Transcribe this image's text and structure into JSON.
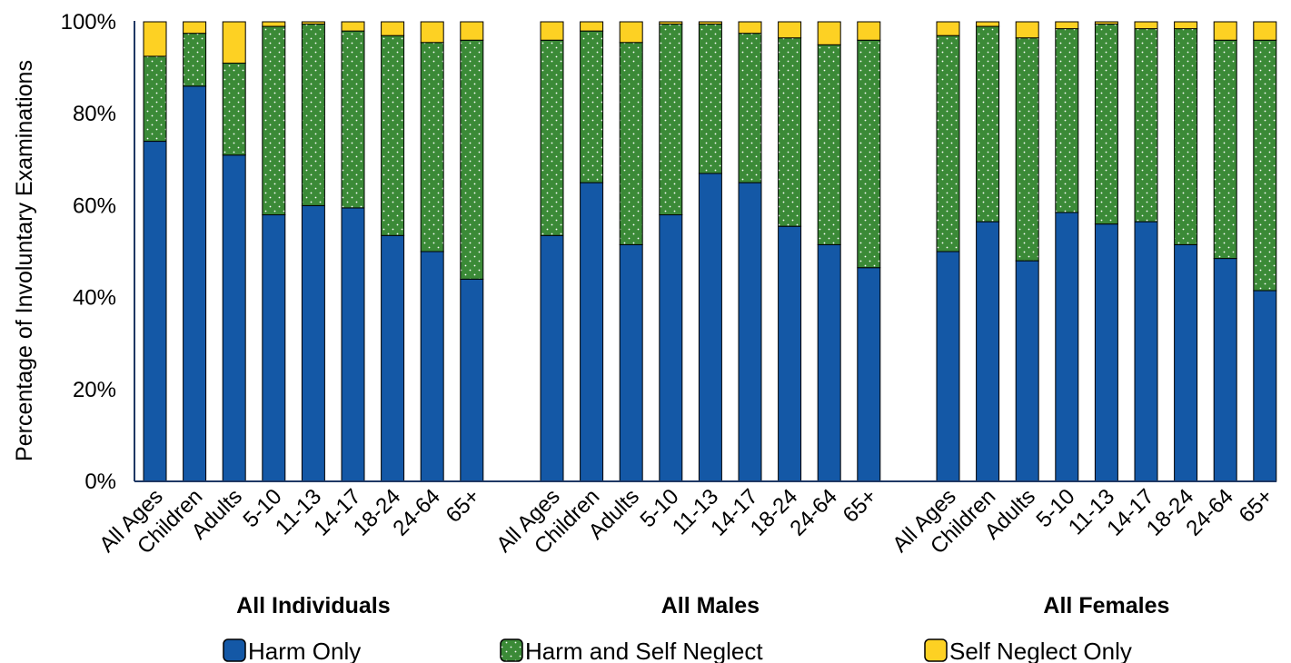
{
  "chart_data": {
    "type": "bar",
    "stacked": true,
    "ylabel": "Percentage of Involuntary Examinations",
    "ylim": [
      0,
      100
    ],
    "yticks": [
      "0%",
      "20%",
      "40%",
      "60%",
      "80%",
      "100%"
    ],
    "grid": false,
    "legend_position": "bottom",
    "groups": [
      {
        "name": "All Individuals",
        "categories": [
          "All Ages",
          "Children",
          "Adults",
          "5-10",
          "11-13",
          "14-17",
          "18-24",
          "24-64",
          "65+"
        ],
        "series": [
          {
            "name": "Harm Only",
            "values": [
              74,
              86,
              71,
              58,
              60,
              59.5,
              53.5,
              50,
              44
            ]
          },
          {
            "name": "Harm and Self Neglect",
            "values": [
              18.5,
              11.5,
              20,
              41,
              39.5,
              38.5,
              43.5,
              45.5,
              52
            ]
          },
          {
            "name": "Self Neglect Only",
            "values": [
              7.5,
              2.5,
              9,
              1,
              0.5,
              2,
              3,
              4.5,
              4
            ]
          }
        ]
      },
      {
        "name": "All Males",
        "categories": [
          "All Ages",
          "Children",
          "Adults",
          "5-10",
          "11-13",
          "14-17",
          "18-24",
          "24-64",
          "65+"
        ],
        "series": [
          {
            "name": "Harm Only",
            "values": [
              53.5,
              65,
              51.5,
              58,
              67,
              65,
              55.5,
              51.5,
              46.5
            ]
          },
          {
            "name": "Harm and Self Neglect",
            "values": [
              42.5,
              33,
              44,
              41.5,
              32.5,
              32.5,
              41,
              43.5,
              49.5
            ]
          },
          {
            "name": "Self Neglect Only",
            "values": [
              4,
              2,
              4.5,
              0.5,
              0.5,
              2.5,
              3.5,
              5,
              4
            ]
          }
        ]
      },
      {
        "name": "All Females",
        "categories": [
          "All Ages",
          "Children",
          "Adults",
          "5-10",
          "11-13",
          "14-17",
          "18-24",
          "24-64",
          "65+"
        ],
        "series": [
          {
            "name": "Harm Only",
            "values": [
              50,
              56.5,
              48,
              58.5,
              56,
              56.5,
              51.5,
              48.5,
              41.5
            ]
          },
          {
            "name": "Harm and Self Neglect",
            "values": [
              47,
              42.5,
              48.5,
              40,
              43.5,
              42,
              47,
              47.5,
              54.5
            ]
          },
          {
            "name": "Self Neglect Only",
            "values": [
              3,
              1,
              3.5,
              1.5,
              0.5,
              1.5,
              1.5,
              4,
              4
            ]
          }
        ]
      }
    ],
    "colors": {
      "Harm Only": "#1458a6",
      "Harm and Self Neglect": "#3b8a37",
      "Self Neglect Only": "#fdd123",
      "axis": "#1f3864"
    }
  }
}
